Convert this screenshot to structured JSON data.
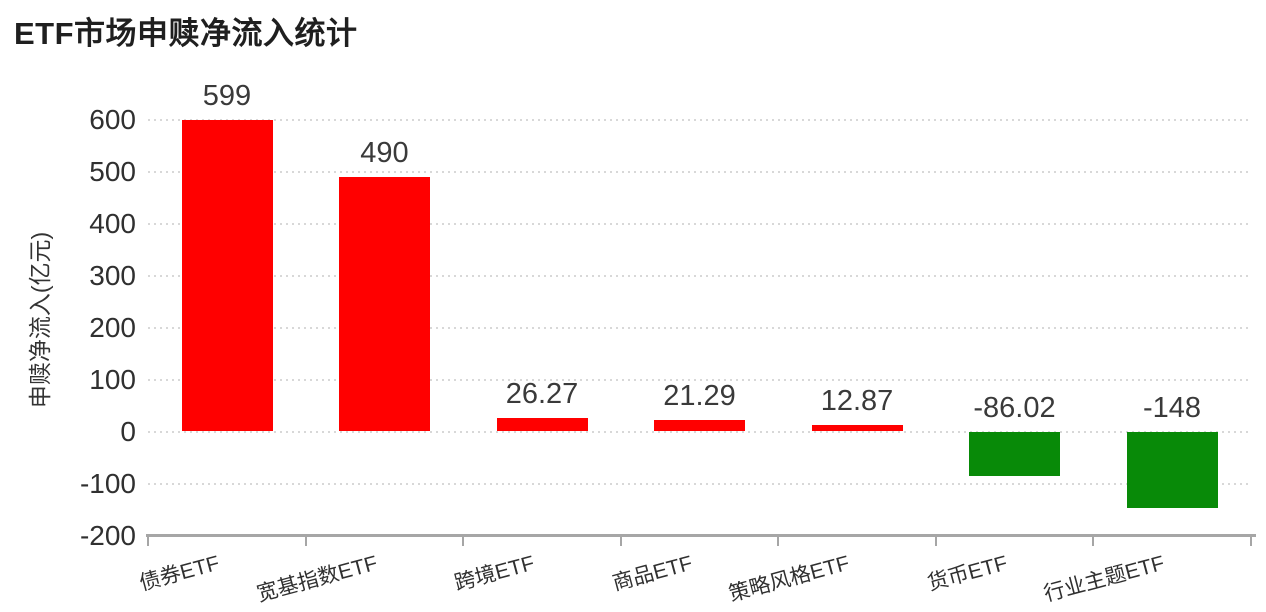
{
  "chart_data": {
    "type": "bar",
    "title": "ETF市场申赎净流入统计",
    "xlabel": "",
    "ylabel": "申赎净流入(亿元)",
    "categories": [
      "债券ETF",
      "宽基指数ETF",
      "跨境ETF",
      "商品ETF",
      "策略风格ETF",
      "货币ETF",
      "行业主题ETF"
    ],
    "values": [
      599,
      490,
      26.27,
      21.29,
      12.87,
      -86.02,
      -148
    ],
    "value_labels": [
      "599",
      "490",
      "26.27",
      "21.29",
      "12.87",
      "-86.02",
      "-148"
    ],
    "yticks": [
      600,
      500,
      400,
      300,
      200,
      100,
      0,
      -100,
      -200
    ],
    "ylim": [
      -200,
      600
    ],
    "grid": "dotted-horizontal",
    "legend": "none",
    "positive_color": "#ff0000",
    "negative_color": "#088a08",
    "axis_color": "#a6a6a6",
    "gridline_color": "#d8d8d8",
    "text_color": "#303030",
    "title_color": "#1f1f1f"
  }
}
